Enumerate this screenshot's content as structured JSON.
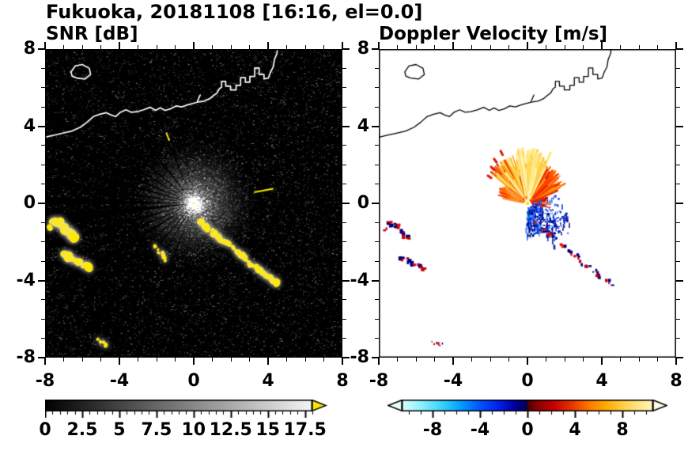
{
  "header": {
    "title": "Fukuoka, 20181108 [16:16, el=0.0]"
  },
  "panels": {
    "snr": {
      "title": "SNR [dB]"
    },
    "doppler": {
      "title": "Doppler Velocity [m/s]"
    }
  },
  "chart_data": [
    {
      "id": "snr",
      "type": "heatmap",
      "title": "SNR [dB]",
      "xlim": [
        -8,
        8
      ],
      "ylim": [
        -8,
        8
      ],
      "xtick_values": [
        -8,
        -4,
        0,
        4,
        8
      ],
      "xtick_labels": [
        "-8",
        "-4",
        "0",
        "4",
        "8"
      ],
      "ytick_values": [
        8,
        4,
        0,
        -4,
        -8
      ],
      "ytick_labels": [
        "8",
        "4",
        "0",
        "-4",
        "-8"
      ],
      "minor_tick_step": 1,
      "background_color": "#000000",
      "radar_center": [
        0,
        0
      ],
      "glow_radius": 3.3,
      "blocked_beams_deg": [
        [
          100,
          1.2
        ],
        [
          113,
          1.6
        ],
        [
          129,
          2.6
        ],
        [
          141,
          2.0
        ],
        [
          150,
          1.8
        ],
        [
          158,
          2.0
        ],
        [
          165,
          2.3
        ],
        [
          172,
          2.0
        ],
        [
          179,
          2.9
        ],
        [
          186,
          4.6
        ],
        [
          195,
          2.3
        ],
        [
          203,
          1.8
        ],
        [
          211,
          2.6
        ],
        [
          220,
          1.8
        ],
        [
          229,
          2.3
        ],
        [
          238,
          1.8
        ],
        [
          249,
          1.4
        ],
        [
          262,
          1.2
        ]
      ],
      "bright_beams_deg_r0_r1": [
        [
          10,
          3.3,
          4.35
        ],
        [
          112,
          3.5,
          3.95
        ]
      ],
      "clutter_color": "#ffe800",
      "colorbar": {
        "range": [
          0,
          18
        ],
        "tick_values": [
          0,
          2.5,
          5,
          7.5,
          10,
          12.5,
          15,
          17.5
        ],
        "tick_labels": [
          "0",
          "2.5",
          "5",
          "7.5",
          "10",
          "12.5",
          "15",
          "17.5"
        ],
        "minor_step": 0.5,
        "gradient": [
          [
            "#000000",
            0
          ],
          [
            "#f5f5f5",
            18
          ]
        ],
        "over_arrow_color": "#ffe800"
      }
    },
    {
      "id": "doppler",
      "type": "heatmap",
      "title": "Doppler Velocity [m/s]",
      "xlim": [
        -8,
        8
      ],
      "ylim": [
        -8,
        8
      ],
      "xtick_values": [
        -8,
        -4,
        0,
        4,
        8
      ],
      "xtick_labels": [
        "-8",
        "-4",
        "0",
        "4",
        "8"
      ],
      "ytick_values": [
        8,
        4,
        0,
        -4,
        -8
      ],
      "ytick_labels": [
        "8",
        "4",
        "0",
        "-4",
        "-8"
      ],
      "minor_tick_step": 1,
      "background_color": "#ffffff",
      "radar_center": [
        0,
        0
      ],
      "fan_sectors": [
        {
          "a0": 22,
          "a1": 62,
          "r1": 2.3,
          "n": 110,
          "colors": [
            "#ff4400",
            "#e82600",
            "#ff7a00",
            "#ffae22"
          ]
        },
        {
          "a0": 62,
          "a1": 102,
          "r1": 2.9,
          "n": 160,
          "colors": [
            "#ffe87d",
            "#fff2a6",
            "#ffd957",
            "#ffc63e"
          ]
        },
        {
          "a0": 102,
          "a1": 142,
          "r1": 2.6,
          "n": 125,
          "colors": [
            "#ffd955",
            "#ff9900",
            "#ef4400",
            "#ffe98c"
          ]
        },
        {
          "a0": 142,
          "a1": 170,
          "r1": 1.7,
          "n": 48,
          "colors": [
            "#ff6600",
            "#e82300",
            "#ff9933"
          ]
        },
        {
          "a0": -12,
          "a1": 22,
          "r1": 1.35,
          "n": 30,
          "colors": [
            "#e83300",
            "#ff8040",
            "#c41000"
          ]
        }
      ],
      "blue_sectors": [
        {
          "a0": -95,
          "a1": -55,
          "r1": 1.65,
          "n": 210,
          "colors": [
            "#0030dd",
            "#001199",
            "#2a6bff",
            "#000070",
            "#3fa0ff"
          ]
        },
        {
          "a0": -55,
          "a1": -12,
          "r1": 2.3,
          "n": 170,
          "colors": [
            "#0030dd",
            "#001199",
            "#2a6bff",
            "#000070"
          ]
        },
        {
          "a0": -60,
          "a1": -20,
          "r1": 2.75,
          "n": 45,
          "colors": [
            "#0030dd",
            "#001199"
          ]
        },
        {
          "a0": -5,
          "a1": 18,
          "r1": 1.9,
          "n": 25,
          "colors": [
            "#0030dd",
            "#2a6bff"
          ]
        }
      ],
      "red_dashes_deg_r": [
        [
          118,
          2.85
        ],
        [
          128,
          2.7
        ],
        [
          136,
          2.5
        ],
        [
          146,
          2.35
        ]
      ],
      "clutter_palette": [
        "#cc0000",
        "#e01212",
        "#000099",
        "#000060"
      ],
      "colorbar": {
        "range": [
          -10.6,
          10.6
        ],
        "tick_values": [
          -8,
          -4,
          0,
          4,
          8
        ],
        "tick_labels": [
          "-8",
          "-4",
          "0",
          "4",
          "8"
        ],
        "minor_step": 1,
        "gradient": [
          [
            "#dfffff",
            -10.6
          ],
          [
            "#8cf2ff",
            -9
          ],
          [
            "#33ccff",
            -7
          ],
          [
            "#0099ff",
            -5.5
          ],
          [
            "#0055ff",
            -4
          ],
          [
            "#0022ee",
            -2.5
          ],
          [
            "#0000aa",
            -1.2
          ],
          [
            "#000066",
            -0.35
          ],
          [
            "#000050",
            -0.05
          ],
          [
            "#4d0000",
            0.05
          ],
          [
            "#8a0000",
            0.8
          ],
          [
            "#c40000",
            2.2
          ],
          [
            "#e83800",
            3.8
          ],
          [
            "#ff7700",
            5.2
          ],
          [
            "#ffaa00",
            6.6
          ],
          [
            "#ffd24d",
            8.2
          ],
          [
            "#ffe992",
            9.6
          ],
          [
            "#fff6c0",
            10.6
          ]
        ],
        "under_arrow_color": "#eaffff",
        "over_arrow_color": "#fffce6"
      }
    }
  ],
  "map": {
    "coastline": [
      [
        -8.3,
        3.3
      ],
      [
        -7.9,
        3.45
      ],
      [
        -7.45,
        3.55
      ],
      [
        -7.0,
        3.65
      ],
      [
        -6.55,
        3.75
      ],
      [
        -6.1,
        3.95
      ],
      [
        -5.75,
        4.2
      ],
      [
        -5.4,
        4.5
      ],
      [
        -5.05,
        4.62
      ],
      [
        -4.7,
        4.7
      ],
      [
        -4.45,
        4.58
      ],
      [
        -4.2,
        4.5
      ],
      [
        -3.95,
        4.72
      ],
      [
        -3.65,
        4.85
      ],
      [
        -3.35,
        4.72
      ],
      [
        -3.05,
        4.75
      ],
      [
        -2.7,
        4.85
      ],
      [
        -2.35,
        4.98
      ],
      [
        -2.05,
        4.82
      ],
      [
        -1.8,
        4.95
      ],
      [
        -1.55,
        4.82
      ],
      [
        -1.25,
        4.9
      ],
      [
        -0.95,
        5.05
      ],
      [
        -0.65,
        5.0
      ],
      [
        -0.35,
        5.1
      ],
      [
        -0.05,
        5.18
      ],
      [
        0.25,
        5.26
      ],
      [
        0.55,
        5.3
      ],
      [
        0.85,
        5.42
      ],
      [
        1.05,
        5.58
      ],
      [
        1.25,
        5.72
      ],
      [
        1.38,
        5.95
      ],
      [
        1.5,
        6.02
      ],
      [
        1.5,
        6.32
      ],
      [
        1.72,
        6.32
      ],
      [
        1.72,
        6.08
      ],
      [
        1.98,
        6.08
      ],
      [
        1.98,
        5.88
      ],
      [
        2.28,
        5.88
      ],
      [
        2.28,
        6.12
      ],
      [
        2.52,
        6.12
      ],
      [
        2.52,
        6.52
      ],
      [
        2.78,
        6.52
      ],
      [
        2.78,
        6.28
      ],
      [
        3.02,
        6.28
      ],
      [
        3.02,
        6.58
      ],
      [
        3.28,
        6.58
      ],
      [
        3.28,
        7.02
      ],
      [
        3.52,
        7.02
      ],
      [
        3.52,
        6.68
      ],
      [
        3.78,
        6.68
      ],
      [
        3.78,
        6.45
      ],
      [
        4.02,
        6.5
      ],
      [
        4.12,
        6.78
      ],
      [
        4.28,
        7.08
      ],
      [
        4.34,
        7.45
      ],
      [
        4.48,
        7.78
      ],
      [
        4.52,
        8.3
      ]
    ],
    "island": [
      [
        -6.6,
        6.82
      ],
      [
        -6.38,
        7.12
      ],
      [
        -6.0,
        7.2
      ],
      [
        -5.62,
        7.0
      ],
      [
        -5.55,
        6.68
      ],
      [
        -5.85,
        6.45
      ],
      [
        -6.3,
        6.5
      ],
      [
        -6.55,
        6.6
      ]
    ],
    "pier": [
      [
        0.2,
        5.3
      ],
      [
        0.35,
        5.62
      ]
    ],
    "clutter_paths": {
      "chain": [
        [
          0.35,
          -0.95
        ],
        [
          0.62,
          -1.18
        ],
        [
          0.95,
          -1.38
        ],
        [
          1.2,
          -1.68
        ],
        [
          1.45,
          -1.85
        ],
        [
          1.75,
          -2.05
        ],
        [
          2.05,
          -2.28
        ],
        [
          2.3,
          -2.5
        ],
        [
          2.6,
          -2.68
        ],
        [
          2.85,
          -2.95
        ],
        [
          3.05,
          -3.18
        ],
        [
          3.35,
          -3.3
        ],
        [
          3.65,
          -3.55
        ],
        [
          3.95,
          -3.8
        ],
        [
          4.25,
          -3.98
        ],
        [
          4.5,
          -4.12
        ]
      ],
      "dash": [
        [
          -2.1,
          -2.25
        ],
        [
          -1.85,
          -2.5
        ],
        [
          -1.62,
          -2.72
        ],
        [
          -1.48,
          -2.92
        ]
      ],
      "west_a": [
        [
          -7.55,
          -0.95
        ],
        [
          -7.25,
          -1.05
        ],
        [
          -7.0,
          -1.2
        ],
        [
          -6.82,
          -1.42
        ],
        [
          -6.62,
          -1.6
        ],
        [
          -6.45,
          -1.78
        ]
      ],
      "west_b": [
        [
          -6.92,
          -2.68
        ],
        [
          -6.62,
          -2.88
        ],
        [
          -6.3,
          -3.02
        ],
        [
          -6.0,
          -3.18
        ],
        [
          -5.72,
          -3.3
        ]
      ],
      "west_dot": [
        [
          -7.72,
          -1.3
        ]
      ],
      "south": [
        [
          -5.15,
          -7.08
        ],
        [
          -4.9,
          -7.2
        ],
        [
          -4.68,
          -7.32
        ]
      ]
    }
  }
}
